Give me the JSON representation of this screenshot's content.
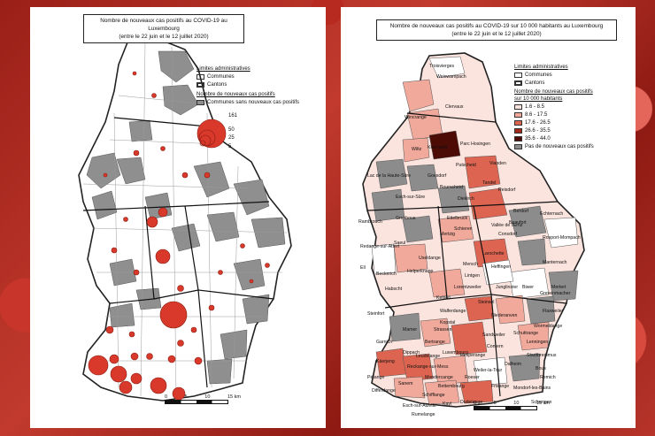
{
  "left_map": {
    "title_line1": "Nombre de nouveaux cas positifs au COVID-19 au Luxembourg",
    "title_line2": "(entre le 22 juin et le 12 juillet 2020)",
    "legend_admin_title": "Limites administratives",
    "legend_communes": "Communes",
    "legend_cantons": "Cantons",
    "legend_cases_title": "Nombre de nouveaux cas positifs",
    "legend_no_cases": "Communes sans nouveaux cas positifs",
    "circle_values": [
      "161",
      "50",
      "25",
      "5"
    ],
    "scale_labels": [
      "0",
      "5",
      "10",
      "15 km"
    ]
  },
  "right_map": {
    "title_line1": "Nombre de nouveaux cas positifs au COVID-19 sur 10 000 habitants au Luxembourg",
    "title_line2": "(entre le 22 juin et le 12 juillet 2020)",
    "legend_admin_title": "Limites administratives",
    "legend_communes": "Communes",
    "legend_cantons": "Cantons",
    "legend_rate_title": "Nombre de nouveaux cas positifs",
    "legend_rate_title2": "sur 10 000 habitants",
    "classes": [
      {
        "label": "1.6 - 8.5",
        "color": "#fbe3de"
      },
      {
        "label": "8.6 - 17.5",
        "color": "#f1a99b"
      },
      {
        "label": "17.6 - 26.5",
        "color": "#dc6450"
      },
      {
        "label": "26.6 - 35.5",
        "color": "#a3281c"
      },
      {
        "label": "35.6 - 44.0",
        "color": "#4d0b06"
      },
      {
        "label": "Pas de nouveaux cas positifs",
        "color": "#8c8c8c"
      }
    ],
    "scale_labels": [
      "0",
      "5",
      "10",
      "15 km"
    ],
    "place_names": [
      "Troisvierges",
      "Weiswampach",
      "Wincrange",
      "Clervaux",
      "Parc Hosingen",
      "Wiltz",
      "Kiischpelt",
      "Putscheid",
      "Vianden",
      "Tandel",
      "Lac de la Haute-Sûre",
      "Goesdorf",
      "Esch-sur-Sûre",
      "Bourscheid",
      "Diekirch",
      "Reisdorf",
      "Rambrouch",
      "Grosbous",
      "Ettelbruck",
      "Beaufort",
      "Berdorf",
      "Echternach",
      "Mertzig",
      "Schieren",
      "Vallée de l'Ernz",
      "Redange-sur-Attert",
      "Saeul",
      "Useldange",
      "Mersch",
      "Larochette",
      "Heffingen",
      "Consdorf",
      "Rosport-Mompach",
      "Ell",
      "Beckerich",
      "Helperknapp",
      "Lintgen",
      "Lorentzweiler",
      "Junglinster",
      "Manternach",
      "Mertert",
      "Habscht",
      "Kehlen",
      "Walferdange",
      "Steinsel",
      "Biwer",
      "Steinfort",
      "Kopstal",
      "Niederanven",
      "Grevenmacher",
      "Mamer",
      "Strassen",
      "Sandweiler",
      "Flaxweiler",
      "Garnich",
      "Bertrange",
      "Luxembourg",
      "Schuttrange",
      "Wormeldange",
      "Dippach",
      "Leudelange",
      "Hesperange",
      "Contern",
      "Lenningen",
      "Käerjeng",
      "Reckange-sur-Mess",
      "Weiler-la-Tour",
      "Stadtbredimus",
      "Pétange",
      "Mondercange",
      "Bettembourg",
      "Roeser",
      "Dalheim",
      "Bous",
      "Sanem",
      "Schifflange",
      "Frisange",
      "Mondorf-les-Bains",
      "Remich",
      "Differdange",
      "Esch-sur-Alzette",
      "Kayl",
      "Dudelange",
      "Schengen",
      "Rumelange"
    ]
  }
}
